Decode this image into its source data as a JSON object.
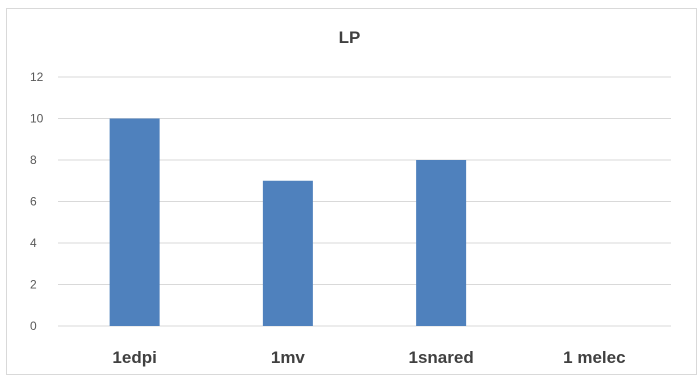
{
  "chart_data": {
    "type": "bar",
    "title": "LP",
    "xlabel": "",
    "ylabel": "",
    "categories": [
      "1edpi",
      "1mv",
      "1snared",
      "1 melec"
    ],
    "values": [
      10,
      7,
      8,
      0
    ],
    "ylim": [
      0,
      12
    ],
    "yticks": [
      0,
      2,
      4,
      6,
      8,
      10,
      12
    ],
    "grid": true,
    "legend": "none",
    "bar_color": "#4f81bd",
    "grid_color": "#d9d9d9"
  }
}
